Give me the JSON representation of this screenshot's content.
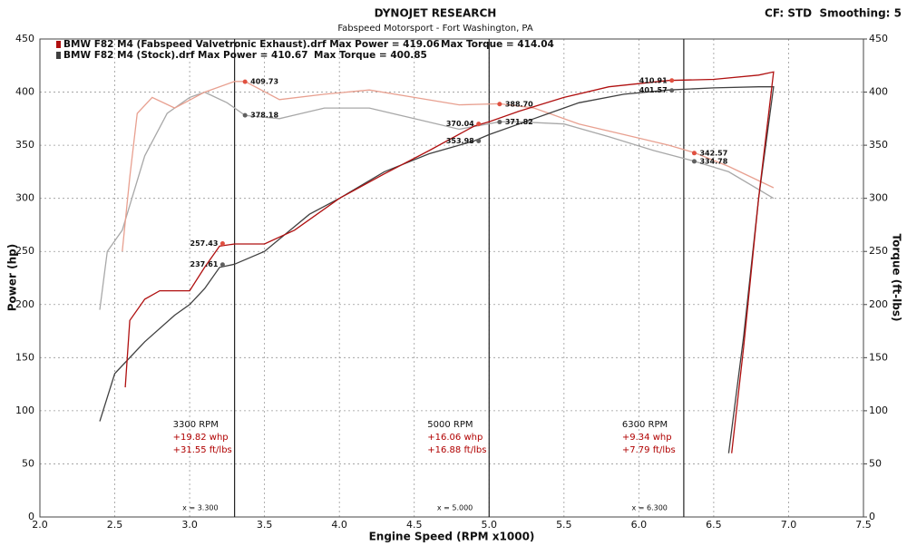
{
  "chart_data": {
    "type": "line",
    "title": "DYNOJET RESEARCH",
    "subtitle": "Fabspeed Motorsport - Fort Washington, PA",
    "settings_text": "CF: STD  Smoothing: 5",
    "xlabel": "Engine Speed (RPM x1000)",
    "ylabel": "Power (hp)",
    "y2label": "Torque (ft-lbs)",
    "xlim": [
      2.0,
      7.5
    ],
    "xticks": [
      {
        "value": 2.0,
        "label": "2.0"
      },
      2.5,
      {
        "value": 3.0,
        "label": "3.0"
      },
      3.5,
      {
        "value": 4.0,
        "label": "4.0"
      },
      4.5,
      {
        "value": 5.0,
        "label": "5.0"
      },
      5.5,
      {
        "value": 6.0,
        "label": "6.0"
      },
      6.5,
      {
        "value": 7.0,
        "label": "7.0"
      },
      7.5
    ],
    "ylim": [
      0,
      450
    ],
    "yticks": [
      0,
      50,
      100,
      150,
      200,
      250,
      300,
      350,
      400,
      450
    ],
    "y2lim": [
      0,
      450
    ],
    "y2ticks": [
      0,
      50,
      100,
      150,
      200,
      250,
      300,
      350,
      400,
      450
    ],
    "grid": true,
    "series": [
      {
        "name": "BMW F82 M4 (Fabspeed Valvetronic Exhaust).drf Max Power = 419.06",
        "color": "#b01010",
        "x": [
          2.57,
          2.6,
          2.7,
          2.8,
          3.0,
          3.1,
          3.2,
          3.3,
          3.5,
          3.7,
          4.0,
          4.3,
          4.6,
          4.9,
          5.0,
          5.2,
          5.5,
          5.8,
          6.0,
          6.2,
          6.5,
          6.8,
          6.9,
          6.8,
          6.7,
          6.62
        ],
        "values": [
          122,
          185,
          205,
          213,
          213,
          235,
          255,
          257,
          257,
          270,
          300,
          323,
          345,
          368,
          372,
          382,
          395,
          405,
          408,
          411,
          412,
          416,
          419,
          300,
          160,
          60
        ]
      },
      {
        "name": "BMW F82 M4 (Stock).drf Max Power = 410.67",
        "color": "#404040",
        "x": [
          2.4,
          2.5,
          2.7,
          2.9,
          3.0,
          3.1,
          3.2,
          3.3,
          3.5,
          3.8,
          4.0,
          4.3,
          4.6,
          4.9,
          5.0,
          5.3,
          5.6,
          5.9,
          6.2,
          6.5,
          6.8,
          6.9,
          6.8,
          6.7,
          6.6
        ],
        "values": [
          90,
          135,
          165,
          190,
          200,
          215,
          235,
          238,
          250,
          285,
          300,
          325,
          342,
          354,
          360,
          375,
          390,
          398,
          402,
          404,
          405,
          405,
          300,
          170,
          60
        ]
      },
      {
        "color": "#e8a090",
        "axis": "y2",
        "x": [
          2.55,
          2.6,
          2.65,
          2.75,
          2.9,
          3.1,
          3.3,
          3.37,
          3.6,
          3.9,
          4.2,
          4.5,
          4.8,
          5.07,
          5.3,
          5.6,
          5.9,
          6.2,
          6.37,
          6.6,
          6.9
        ],
        "values": [
          250,
          320,
          380,
          395,
          385,
          400,
          410,
          410,
          393,
          398,
          402,
          395,
          388,
          389,
          385,
          370,
          360,
          350,
          343,
          330,
          310
        ]
      },
      {
        "color": "#a8a8a8",
        "axis": "y2",
        "x": [
          2.4,
          2.45,
          2.55,
          2.7,
          2.85,
          3.0,
          3.1,
          3.25,
          3.37,
          3.6,
          3.9,
          4.2,
          4.5,
          4.8,
          5.07,
          5.2,
          5.5,
          5.8,
          6.1,
          6.37,
          6.6,
          6.9
        ],
        "values": [
          195,
          250,
          270,
          340,
          380,
          395,
          400,
          390,
          378,
          375,
          385,
          385,
          375,
          365,
          372,
          372,
          370,
          358,
          345,
          335,
          325,
          300
        ]
      }
    ],
    "legend_extra": [
      "Max Torque = 414.04",
      "Max Torque = 400.85"
    ],
    "markers": {
      "x": [
        3.37,
        3.37,
        3.22,
        3.22,
        5.07,
        5.07,
        4.93,
        4.93,
        6.22,
        6.22,
        6.37,
        6.37
      ],
      "values": [
        409.73,
        378.18,
        257.43,
        237.61,
        388.7,
        371.82,
        370.04,
        353.98,
        410.91,
        401.57,
        342.57,
        334.78
      ],
      "value_labels": [
        "409.73",
        "378.18",
        "257.43",
        "237.61",
        "388.70",
        "371.82",
        "370.04",
        "353.98",
        "410.91",
        "401.57",
        "342.57",
        "334.78"
      ],
      "colors": [
        "#e05040",
        "#606060",
        "#e05040",
        "#606060",
        "#e05040",
        "#606060",
        "#e05040",
        "#606060",
        "#e05040",
        "#606060",
        "#e05040",
        "#606060"
      ]
    },
    "cursors": [
      {
        "x": 3.3,
        "label": "x = 3.300",
        "rpm": "3300 RPM",
        "gain_power": "+19.82 whp",
        "gain_torque": "+31.55 ft/lbs"
      },
      {
        "x": 5.0,
        "label": "x = 5.000",
        "rpm": "5000 RPM",
        "gain_power": "+16.06 whp",
        "gain_torque": "+16.88 ft/lbs"
      },
      {
        "x": 6.3,
        "label": "x = 6.300",
        "rpm": "6300 RPM",
        "gain_power": "+9.34 whp",
        "gain_torque": "+7.79 ft/lbs"
      }
    ]
  }
}
